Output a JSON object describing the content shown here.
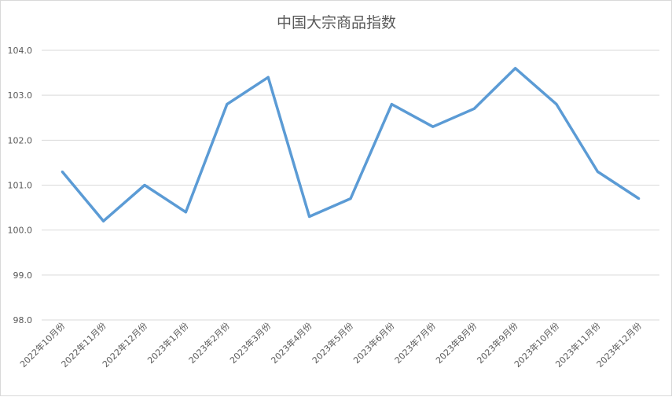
{
  "chart_data": {
    "type": "line",
    "title": "中国大宗商品指数",
    "xlabel": "",
    "ylabel": "",
    "categories": [
      "2022年10月份",
      "2022年11月份",
      "2022年12月份",
      "2023年1月份",
      "2023年2月份",
      "2023年3月份",
      "2023年4月份",
      "2023年5月份",
      "2023年6月份",
      "2023年7月份",
      "2023年8月份",
      "2023年9月份",
      "2023年10月份",
      "2023年11月份",
      "2023年12月份"
    ],
    "values": [
      101.3,
      100.2,
      101.0,
      100.4,
      102.8,
      103.4,
      100.3,
      100.7,
      102.8,
      102.3,
      102.7,
      103.6,
      102.8,
      101.3,
      100.7
    ],
    "ylim": [
      98.0,
      104.0
    ],
    "yticks": [
      "98.0",
      "99.0",
      "100.0",
      "101.0",
      "102.0",
      "103.0",
      "104.0"
    ],
    "grid": true,
    "legend": "none",
    "line_color": "#5b9bd5"
  }
}
